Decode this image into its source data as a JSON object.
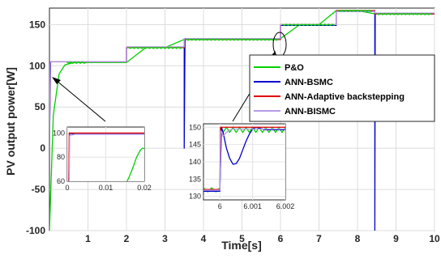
{
  "chart_data": {
    "type": "line",
    "xlabel": "Time[s]",
    "ylabel": "PV output power[W]",
    "xlim": [
      0,
      10
    ],
    "ylim": [
      -100,
      170
    ],
    "grid": true,
    "legend_position": "right",
    "xticks": [
      "1",
      "2",
      "3",
      "4",
      "5",
      "6",
      "7",
      "8",
      "9",
      "10"
    ],
    "yticks": [
      "-100",
      "-50",
      "0",
      "50",
      "100",
      "150"
    ],
    "series": [
      {
        "name": "P&O",
        "color": "#00d000",
        "x": [
          0,
          0.1,
          0.25,
          0.4,
          0.55,
          0.7,
          0.85,
          1.0,
          1.5,
          2.0,
          2.5,
          3.0,
          3.5,
          4.0,
          5.0,
          6.0,
          6.5,
          7.0,
          7.45,
          8.0,
          8.45,
          9.0,
          10.0
        ],
        "y": [
          -100,
          40,
          90,
          101,
          103,
          104,
          104,
          104,
          104,
          104,
          122,
          122,
          132,
          132,
          132,
          133,
          150,
          150,
          167,
          167,
          163,
          163,
          163
        ]
      },
      {
        "name": "ANN-BSMC",
        "color": "#0000cc",
        "x": [
          0,
          0.03,
          2.0,
          2.0,
          3.5,
          3.5,
          3.5,
          3.52,
          6.0,
          6.0,
          7.45,
          7.45,
          8.45,
          8.45,
          8.46,
          10.0
        ],
        "y": [
          0,
          105,
          105,
          122,
          122,
          78,
          0,
          132,
          132,
          149,
          149,
          166,
          166,
          -100,
          163,
          163
        ]
      },
      {
        "name": "ANN-Adaptive backstepping",
        "color": "#e00000",
        "x": [
          0,
          0.02,
          2.0,
          2.0,
          3.5,
          3.5,
          6.0,
          6.0,
          7.45,
          7.45,
          8.45,
          8.45,
          10.0
        ],
        "y": [
          0,
          105,
          105,
          122,
          122,
          132,
          132,
          150,
          150,
          167,
          167,
          163,
          163
        ]
      },
      {
        "name": "ANN-BISMC",
        "color": "#b69be6",
        "x": [
          0,
          0.02,
          2.0,
          2.0,
          3.5,
          3.5,
          6.0,
          6.0,
          7.45,
          7.45,
          8.45,
          8.45,
          10.0
        ],
        "y": [
          0,
          105,
          105,
          123,
          123,
          133,
          133,
          150,
          150,
          166,
          166,
          164,
          164
        ]
      }
    ],
    "insets": [
      {
        "xlim": [
          0,
          0.02
        ],
        "ylim": [
          60,
          105
        ],
        "xticks": [
          "0",
          "0.01",
          "0.02"
        ],
        "yticks": [
          "60",
          "80",
          "100"
        ],
        "series": [
          {
            "name": "P&O",
            "color": "#00d000",
            "x": [
              0.0155,
              0.016,
              0.017,
              0.018,
              0.019,
              0.0195,
              0.02
            ],
            "y": [
              60,
              63,
              71,
              80,
              86,
              87.5,
              87
            ]
          },
          {
            "name": "ANN-BSMC",
            "color": "#0000cc",
            "x": [
              0.0004,
              0.0006,
              0.0012,
              0.02
            ],
            "y": [
              60,
              100,
              99.5,
              99.5
            ]
          },
          {
            "name": "ANN-Adaptive backstepping",
            "color": "#e00000",
            "x": [
              0.0004,
              0.0005,
              0.001,
              0.02
            ],
            "y": [
              60,
              100,
              100,
              100
            ]
          },
          {
            "name": "ANN-BISMC",
            "color": "#b69be6",
            "x": [
              0.0005,
              0.0006,
              0.002,
              0.02
            ],
            "y": [
              60,
              98,
              99,
              99
            ]
          }
        ]
      },
      {
        "xlim": [
          5.9995,
          6.002
        ],
        "ylim": [
          129,
          151
        ],
        "xticks": [
          "6",
          "6.001",
          "6.002"
        ],
        "yticks": [
          "130",
          "135",
          "140",
          "145",
          "150"
        ],
        "series": [
          {
            "name": "P&O",
            "color": "#00d000",
            "x": [
              5.9995,
              5.99963,
              5.99975,
              5.99988,
              6.0,
              6.00005,
              6.0001,
              6.0002,
              6.0003,
              6.0004,
              6.0005,
              6.0006,
              6.0007,
              6.0008,
              6.0009,
              6.001,
              6.0011,
              6.0012,
              6.0013,
              6.0014,
              6.0015,
              6.0016,
              6.0017,
              6.0018,
              6.0019,
              6.002
            ],
            "y": [
              132.5,
              131.3,
              132.5,
              131.3,
              132.5,
              150,
              148.5,
              150,
              148.5,
              150,
              148.5,
              150,
              148.5,
              150,
              148.5,
              150,
              148.5,
              150,
              148.5,
              150,
              148.5,
              150,
              148.5,
              150,
              148.5,
              150
            ]
          },
          {
            "name": "ANN-BSMC",
            "color": "#0000cc",
            "x": [
              5.9995,
              6.0,
              6.00005,
              6.0001,
              6.0002,
              6.0003,
              6.0004,
              6.0005,
              6.0006,
              6.0007,
              6.0008,
              6.0009,
              6.001,
              6.0011,
              6.0012,
              6.0013,
              6.0014,
              6.002
            ],
            "y": [
              131.5,
              131.5,
              150,
              148.5,
              144,
              141,
              139.3,
              139.5,
              141,
              143.5,
              146,
              148,
              149.5,
              150,
              149.8,
              149.5,
              149.3,
              149.3
            ]
          },
          {
            "name": "ANN-Adaptive backstepping",
            "color": "#e00000",
            "x": [
              5.9995,
              6.0,
              6.00002,
              6.002
            ],
            "y": [
              132,
              132,
              150,
              150
            ]
          },
          {
            "name": "ANN-BISMC",
            "color": "#b69be6",
            "x": [
              5.9995,
              6.0,
              6.00003,
              6.0001,
              6.0002,
              6.0003,
              6.0004,
              6.002
            ],
            "y": [
              131.8,
              131.8,
              149,
              147.5,
              148.5,
              149.2,
              149.5,
              149.5
            ]
          }
        ]
      }
    ]
  }
}
